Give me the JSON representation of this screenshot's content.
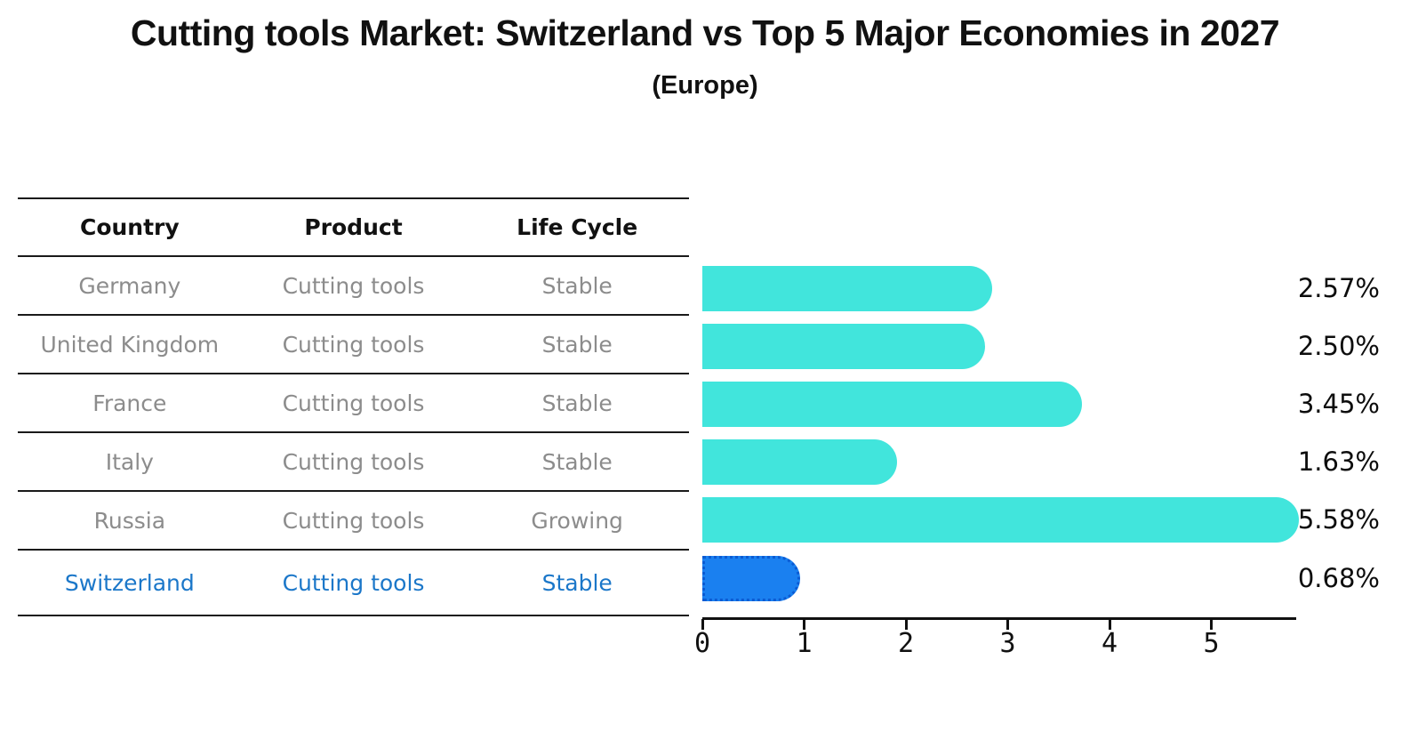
{
  "title": "Cutting tools Market: Switzerland vs Top 5 Major Economies in 2027",
  "subtitle": "(Europe)",
  "table": {
    "headers": [
      "Country",
      "Product",
      "Life Cycle"
    ],
    "rows": [
      {
        "country": "Germany",
        "product": "Cutting tools",
        "life_cycle": "Stable",
        "highlight": false
      },
      {
        "country": "United Kingdom",
        "product": "Cutting tools",
        "life_cycle": "Stable",
        "highlight": false
      },
      {
        "country": "France",
        "product": "Cutting tools",
        "life_cycle": "Stable",
        "highlight": false
      },
      {
        "country": "Italy",
        "product": "Cutting tools",
        "life_cycle": "Stable",
        "highlight": false
      },
      {
        "country": "Russia",
        "product": "Cutting tools",
        "life_cycle": "Growing",
        "highlight": false
      },
      {
        "country": "Switzerland",
        "product": "Cutting tools",
        "life_cycle": "Stable",
        "highlight": true
      }
    ]
  },
  "chart_data": {
    "type": "bar",
    "orientation": "horizontal",
    "title": "Cutting tools Market: Switzerland vs Top 5 Major Economies in 2027",
    "subtitle": "(Europe)",
    "categories": [
      "Germany",
      "United Kingdom",
      "France",
      "Italy",
      "Russia",
      "Switzerland"
    ],
    "values": [
      2.57,
      2.5,
      3.45,
      1.63,
      5.58,
      0.68
    ],
    "value_labels": [
      "2.57%",
      "2.50%",
      "3.45%",
      "1.63%",
      "5.58%",
      "0.68%"
    ],
    "xlim": [
      0,
      5.85
    ],
    "xticks": [
      "0",
      "1",
      "2",
      "3",
      "4",
      "5"
    ],
    "grid": false,
    "value_label_position": "right",
    "highlight_index": 5
  },
  "colors": {
    "bar": "#41E5DC",
    "highlight_bar": "#1A80F0",
    "highlight_border": "#0B5BD3",
    "highlight_text": "#1B77C9",
    "row_text": "#8C8C8C",
    "axis": "#111111"
  }
}
